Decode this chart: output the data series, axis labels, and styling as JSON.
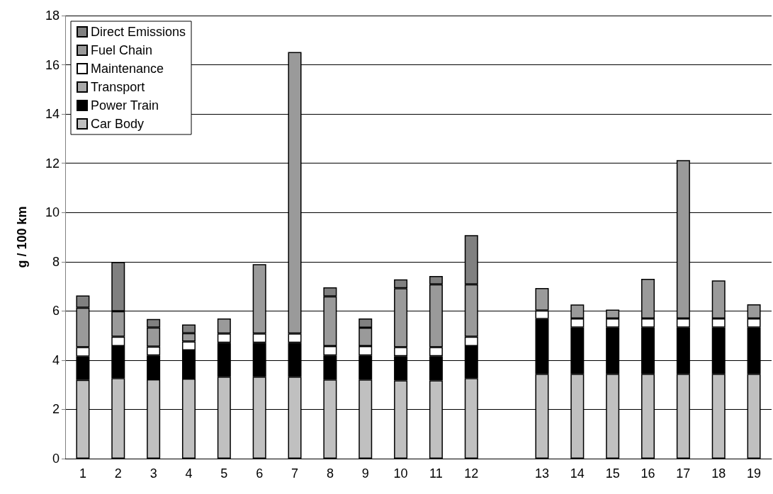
{
  "chart_data": {
    "type": "bar",
    "stacked": true,
    "ylabel": "g / 100 km",
    "categories": [
      "1",
      "2",
      "3",
      "4",
      "5",
      "6",
      "7",
      "8",
      "9",
      "10",
      "11",
      "12",
      null,
      "13",
      "14",
      "15",
      "16",
      "17",
      "18",
      "19"
    ],
    "series": [
      {
        "name": "Car Body",
        "color": "#c0c0c0",
        "values": [
          3.2,
          3.27,
          3.22,
          3.25,
          3.33,
          3.33,
          3.33,
          3.21,
          3.21,
          3.18,
          3.18,
          3.27,
          null,
          3.44,
          3.44,
          3.44,
          3.44,
          3.44,
          3.44,
          3.44
        ]
      },
      {
        "name": "Power Train",
        "color": "#000000",
        "values": [
          0.95,
          1.3,
          0.97,
          1.15,
          1.38,
          1.38,
          1.38,
          0.98,
          0.98,
          0.98,
          0.98,
          1.3,
          null,
          2.23,
          1.89,
          1.89,
          1.89,
          1.89,
          1.89,
          1.89
        ]
      },
      {
        "name": "Transport",
        "color": "#a8a8a8",
        "values": [
          null,
          null,
          null,
          null,
          null,
          null,
          null,
          null,
          null,
          null,
          null,
          null,
          null,
          null,
          null,
          null,
          null,
          null,
          null,
          null
        ]
      },
      {
        "name": "Maintenance",
        "color": "#ffffff",
        "values": [
          0.38,
          0.38,
          0.36,
          0.36,
          0.37,
          0.37,
          0.37,
          0.38,
          0.38,
          0.37,
          0.37,
          0.38,
          null,
          0.35,
          0.36,
          0.36,
          0.36,
          0.36,
          0.36,
          0.36
        ]
      },
      {
        "name": "Fuel Chain",
        "color": "#9a9a9a",
        "values": [
          1.6,
          1.04,
          0.78,
          0.34,
          0.61,
          2.82,
          11.44,
          2.02,
          0.75,
          2.39,
          2.55,
          2.13,
          null,
          0.91,
          0.57,
          0.36,
          1.61,
          6.44,
          1.55,
          0.58
        ]
      },
      {
        "name": "Direct Emissions",
        "color": "#808080",
        "values": [
          0.5,
          2.0,
          0.34,
          0.35,
          null,
          null,
          null,
          0.37,
          0.37,
          0.36,
          0.34,
          2.0,
          null,
          null,
          null,
          null,
          null,
          null,
          null,
          null
        ]
      }
    ],
    "ylim": [
      0,
      18
    ],
    "yticks": [
      0,
      2,
      4,
      6,
      8,
      10,
      12,
      14,
      16,
      18
    ],
    "grid": "y",
    "legend": "top left"
  }
}
